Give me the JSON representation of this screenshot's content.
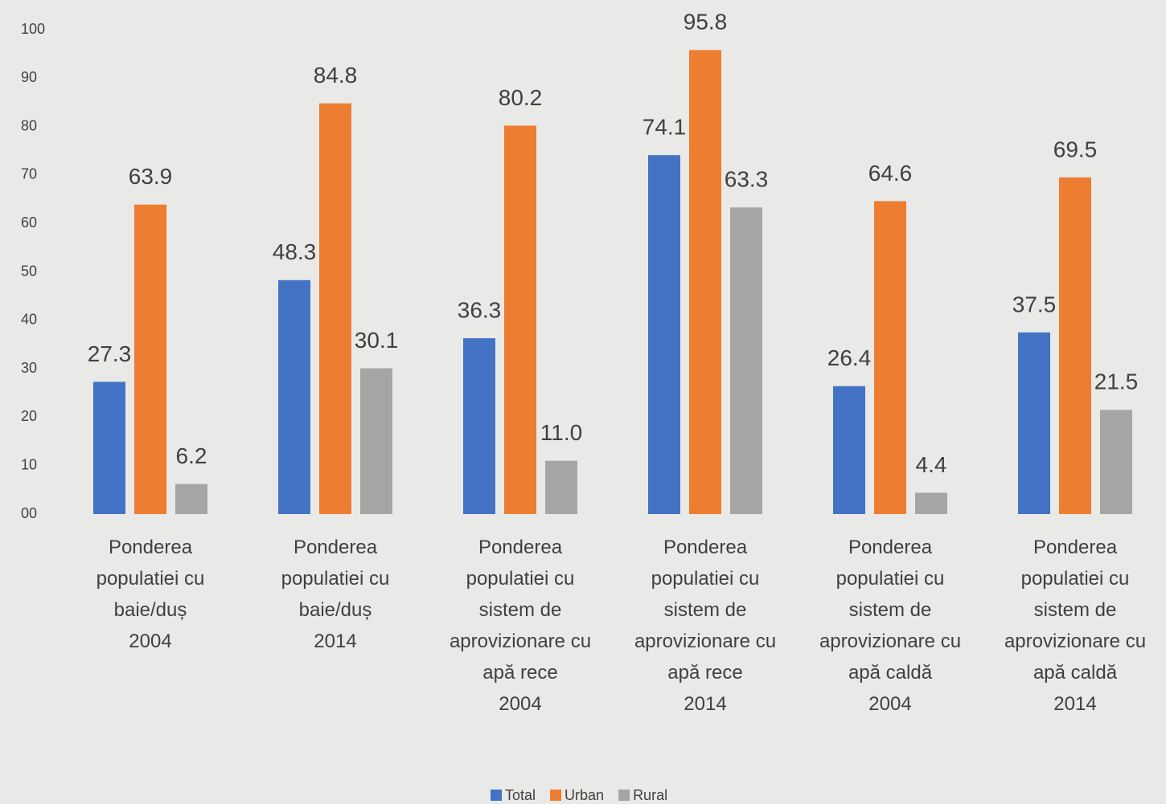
{
  "chart_data": {
    "type": "bar",
    "categories": [
      "Ponderea\npopulatiei cu\nbaie/duș\n2004",
      "Ponderea\npopulatiei cu\nbaie/duș\n2014",
      "Ponderea\npopulatiei cu\nsistem de\naprovizionare cu\napă rece\n2004",
      "Ponderea\npopulatiei cu\nsistem de\naprovizionare cu\napă rece\n2014",
      "Ponderea\npopulatiei cu\nsistem de\naprovizionare cu\napă caldă\n2004",
      "Ponderea\npopulatiei cu\nsistem de\naprovizionare cu\napă caldă\n2014"
    ],
    "series": [
      {
        "name": "Total",
        "color": "#4472c4",
        "values": [
          27.3,
          48.3,
          36.3,
          74.1,
          26.4,
          37.5
        ],
        "value_labels": [
          "27.3",
          "48.3",
          "36.3",
          "74.1",
          "26.4",
          "37.5"
        ]
      },
      {
        "name": "Urban",
        "color": "#ed7d31",
        "values": [
          63.9,
          84.8,
          80.2,
          95.8,
          64.6,
          69.5
        ],
        "value_labels": [
          "63.9",
          "84.8",
          "80.2",
          "95.8",
          "64.6",
          "69.5"
        ]
      },
      {
        "name": "Rural",
        "color": "#a5a5a5",
        "values": [
          6.2,
          30.1,
          11.0,
          63.3,
          4.4,
          21.5
        ],
        "value_labels": [
          "6.2",
          "30.1",
          "11.0",
          "63.3",
          "4.4",
          "21.5"
        ]
      }
    ],
    "ylim": [
      0,
      100
    ],
    "yticks": [
      {
        "value": 0,
        "label": "00"
      },
      10,
      20,
      30,
      40,
      50,
      60,
      70,
      80,
      90,
      100
    ],
    "grid": false,
    "legend": "bottom"
  }
}
